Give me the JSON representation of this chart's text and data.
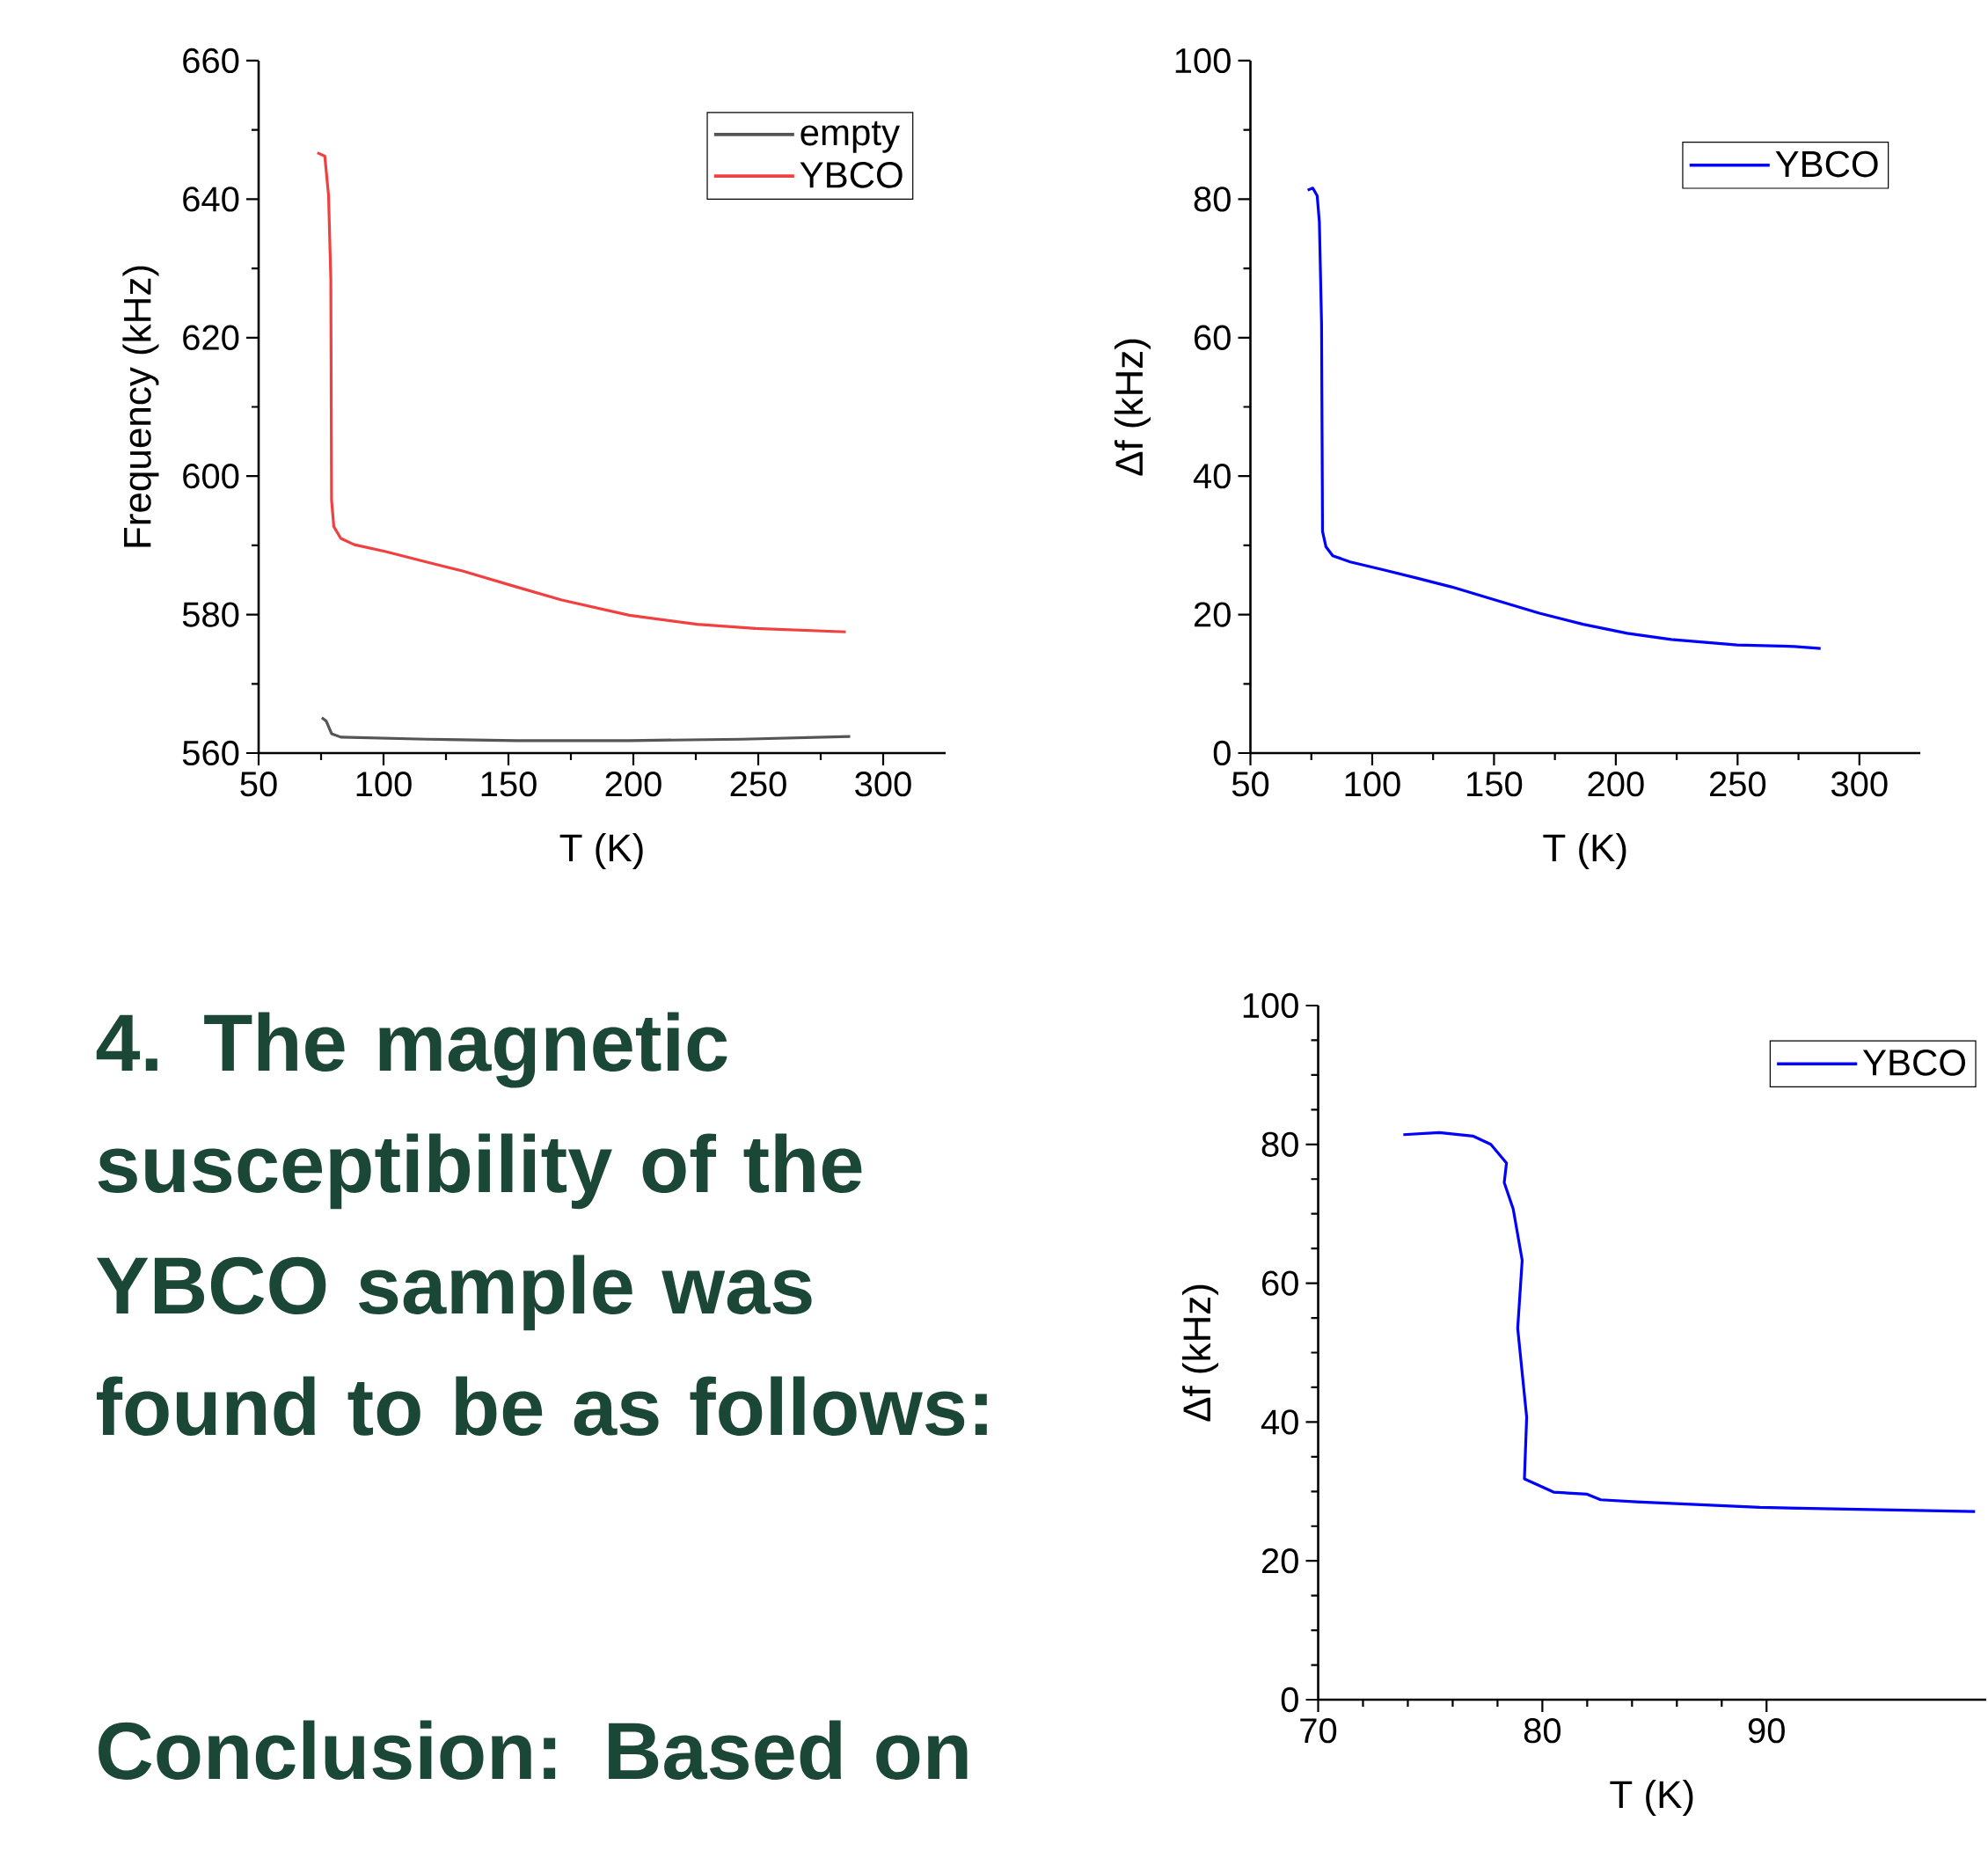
{
  "chart_data": [
    {
      "type": "line",
      "xlabel": "T (K)",
      "ylabel": "Frequency (kHz)",
      "xlim": [
        50,
        325
      ],
      "xticks": [
        50,
        100,
        150,
        200,
        250,
        300
      ],
      "ylim": [
        560,
        660
      ],
      "yticks": [
        560,
        580,
        600,
        620,
        640,
        660
      ],
      "legend": "top right",
      "grid": false,
      "series": [
        {
          "name": "empty",
          "color": "#555555",
          "x": [
            75.3,
            77.1,
            79.2,
            82.9,
            117.1,
            153.2,
            198.4,
            243.5,
            286.8
          ],
          "values": [
            565.1,
            564.6,
            562.8,
            562.3,
            562.0,
            561.8,
            561.8,
            562.0,
            562.4
          ]
        },
        {
          "name": "YBCO",
          "color": "#f04040",
          "x": [
            73.5,
            76.5,
            78.0,
            78.9,
            79.2,
            80.1,
            82.9,
            88.3,
            100.9,
            117.1,
            131.6,
            153.2,
            171.3,
            198.4,
            225.5,
            249.0,
            285.0
          ],
          "values": [
            646.7,
            646.2,
            640.5,
            628.4,
            596.5,
            592.7,
            591.0,
            590.1,
            589.1,
            587.6,
            586.3,
            584.0,
            582.1,
            579.9,
            578.6,
            578.0,
            577.5
          ]
        }
      ]
    },
    {
      "type": "line",
      "xlabel": "T (K)",
      "ylabel": "Δf (kHz)",
      "xlim": [
        50,
        325
      ],
      "xticks": [
        50,
        100,
        150,
        200,
        250,
        300
      ],
      "ylim": [
        0,
        100
      ],
      "yticks": [
        0,
        20,
        40,
        60,
        80,
        100
      ],
      "legend": "top right",
      "grid": false,
      "series": [
        {
          "name": "YBCO",
          "color": "#0000ff",
          "x": [
            73.5,
            75.6,
            77.4,
            78.3,
            79.2,
            79.6,
            81.0,
            83.8,
            91.0,
            105.4,
            118.0,
            132.5,
            150.5,
            168.6,
            186.6,
            204.7,
            222.7,
            249.8,
            273.3,
            284.1
          ],
          "values": [
            81.3,
            81.6,
            80.5,
            76.7,
            62.0,
            32.0,
            29.8,
            28.5,
            27.6,
            26.4,
            25.3,
            24.0,
            22.1,
            20.2,
            18.6,
            17.3,
            16.4,
            15.6,
            15.4,
            15.1
          ]
        }
      ]
    },
    {
      "type": "line",
      "xlabel": "T (K)",
      "ylabel": "Δf (kHz)",
      "xlim": [
        70,
        99.8
      ],
      "xticks": [
        70,
        80,
        90
      ],
      "ylim": [
        0,
        100
      ],
      "yticks": [
        0,
        20,
        40,
        60,
        80,
        100
      ],
      "legend": "top right",
      "grid": false,
      "series": [
        {
          "name": "YBCO",
          "color": "#0000ff",
          "x": [
            73.8,
            75.4,
            76.9,
            77.7,
            78.4,
            78.3,
            78.7,
            79.1,
            78.9,
            79.3,
            79.2,
            80.5,
            82.0,
            82.6,
            84.2,
            89.7,
            99.3
          ],
          "values": [
            81.4,
            81.7,
            81.2,
            80.0,
            77.3,
            74.5,
            70.7,
            63.3,
            53.5,
            40.7,
            31.8,
            29.9,
            29.6,
            28.8,
            28.5,
            27.7,
            27.1
          ]
        }
      ]
    },
    {
      "type": "other",
      "annotations": [
        "4. The magnetic susceptibility of the YBCO sample was found to be as follows:",
        "Conclusion:  Based on"
      ]
    }
  ]
}
